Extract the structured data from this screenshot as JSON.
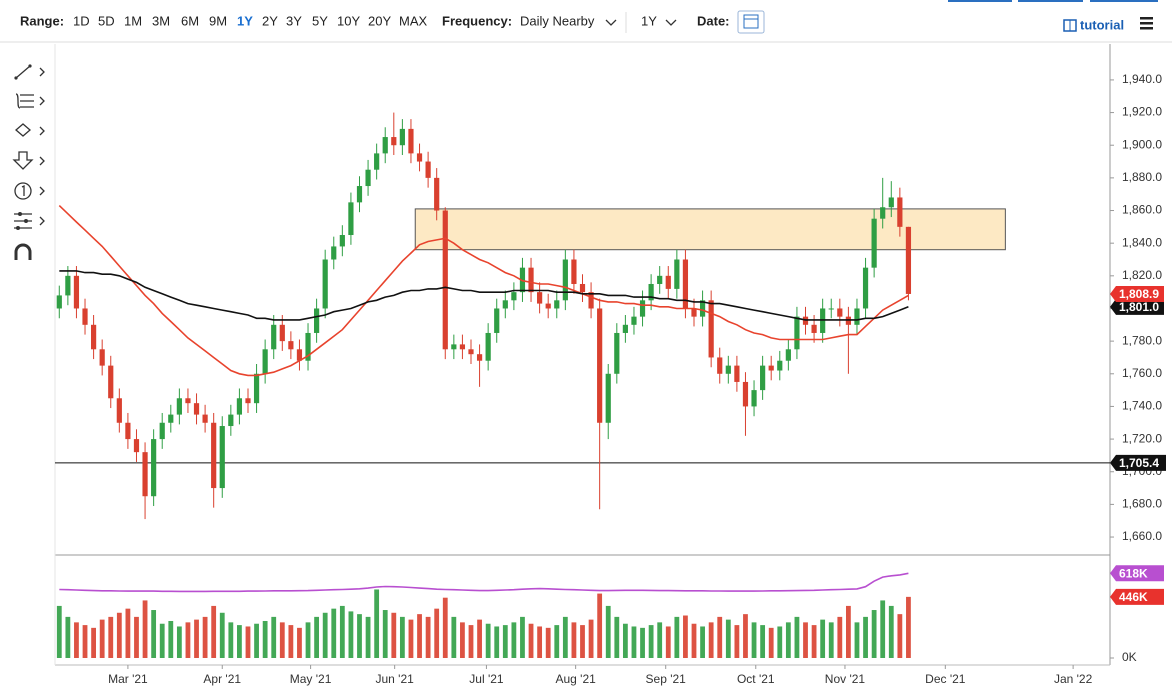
{
  "toolbar": {
    "range_label": "Range:",
    "ranges": [
      "1D",
      "5D",
      "1M",
      "3M",
      "6M",
      "9M",
      "1Y",
      "2Y",
      "3Y",
      "5Y",
      "10Y",
      "20Y",
      "MAX"
    ],
    "active_range": 6,
    "frequency_label": "Frequency:",
    "frequency": "Daily Nearby",
    "period": "1Y",
    "date_label": "Date:",
    "tutorial": "tutorial"
  },
  "chart_data": {
    "type": "candlestick",
    "categories": [
      null,
      null,
      null,
      null,
      null,
      null,
      null,
      null,
      null,
      null,
      null,
      null,
      null,
      null,
      null,
      null,
      null,
      null,
      null,
      null,
      null,
      null,
      null,
      null,
      null,
      null,
      null,
      null,
      null,
      null,
      null,
      null,
      null,
      null,
      null,
      null,
      null,
      null,
      null,
      null,
      null,
      null,
      null,
      null,
      null,
      null,
      null,
      null,
      null,
      null,
      null,
      null,
      null,
      null,
      null,
      null,
      null,
      null,
      null,
      null,
      null,
      null,
      null,
      null,
      null,
      null,
      null,
      null,
      null,
      null,
      null,
      null,
      null,
      null,
      null,
      null,
      null,
      null,
      null,
      null,
      null,
      null,
      null,
      null,
      null,
      null,
      null,
      null,
      null,
      null,
      null,
      null,
      null,
      null,
      null,
      null,
      null,
      null,
      null,
      null
    ],
    "open": [
      1800,
      1808,
      1820,
      1800,
      1790,
      1775,
      1765,
      1745,
      1730,
      1720,
      1712,
      1685,
      1720,
      1730,
      1735,
      1745,
      1742,
      1735,
      1730,
      1690,
      1728,
      1735,
      1745,
      1742,
      1760,
      1775,
      1790,
      1780,
      1775,
      1768,
      1785,
      1800,
      1830,
      1838,
      1845,
      1865,
      1875,
      1885,
      1895,
      1905,
      1900,
      1910,
      1895,
      1890,
      1880,
      1860,
      1775,
      1778,
      1775,
      1772,
      1768,
      1785,
      1800,
      1805,
      1810,
      1825,
      1810,
      1803,
      1800,
      1805,
      1830,
      1815,
      1810,
      1800,
      1730,
      1760,
      1785,
      1790,
      1795,
      1805,
      1815,
      1820,
      1812,
      1830,
      1800,
      1795,
      1805,
      1770,
      1760,
      1765,
      1755,
      1740,
      1750,
      1765,
      1762,
      1768,
      1775,
      1795,
      1790,
      1785,
      1800,
      1800,
      1795,
      1790,
      1800,
      1825,
      1855,
      1862,
      1868,
      1850
    ],
    "high": [
      1814,
      1826,
      1826,
      1806,
      1796,
      1781,
      1771,
      1751,
      1736,
      1726,
      1718,
      1726,
      1736,
      1741,
      1751,
      1751,
      1748,
      1741,
      1736,
      1734,
      1741,
      1751,
      1751,
      1766,
      1781,
      1796,
      1796,
      1786,
      1781,
      1791,
      1806,
      1836,
      1844,
      1851,
      1871,
      1881,
      1891,
      1901,
      1911,
      1920,
      1916,
      1916,
      1901,
      1896,
      1886,
      1862,
      1784,
      1784,
      1781,
      1778,
      1791,
      1806,
      1811,
      1816,
      1831,
      1831,
      1816,
      1809,
      1811,
      1836,
      1836,
      1821,
      1816,
      1806,
      1766,
      1791,
      1796,
      1801,
      1811,
      1821,
      1826,
      1826,
      1836,
      1836,
      1806,
      1811,
      1811,
      1776,
      1771,
      1771,
      1761,
      1756,
      1771,
      1771,
      1774,
      1781,
      1801,
      1801,
      1796,
      1806,
      1806,
      1806,
      1801,
      1806,
      1831,
      1861,
      1880,
      1878,
      1874,
      1850
    ],
    "low": [
      1794,
      1802,
      1794,
      1784,
      1769,
      1759,
      1739,
      1724,
      1714,
      1706,
      1671,
      1679,
      1714,
      1724,
      1729,
      1736,
      1729,
      1724,
      1678,
      1684,
      1722,
      1729,
      1736,
      1736,
      1754,
      1769,
      1774,
      1769,
      1762,
      1762,
      1779,
      1794,
      1824,
      1832,
      1839,
      1859,
      1869,
      1879,
      1889,
      1894,
      1894,
      1889,
      1884,
      1874,
      1854,
      1769,
      1769,
      1769,
      1766,
      1752,
      1762,
      1779,
      1794,
      1799,
      1804,
      1804,
      1797,
      1794,
      1794,
      1799,
      1809,
      1804,
      1794,
      1677,
      1720,
      1754,
      1779,
      1784,
      1789,
      1799,
      1809,
      1806,
      1806,
      1794,
      1789,
      1789,
      1764,
      1754,
      1754,
      1749,
      1722,
      1734,
      1744,
      1756,
      1756,
      1762,
      1769,
      1784,
      1779,
      1779,
      1794,
      1789,
      1760,
      1784,
      1794,
      1819,
      1849,
      1856,
      1844,
      1805
    ],
    "close": [
      1808,
      1820,
      1800,
      1790,
      1775,
      1765,
      1745,
      1730,
      1720,
      1712,
      1685,
      1720,
      1730,
      1735,
      1745,
      1742,
      1735,
      1730,
      1690,
      1728,
      1735,
      1745,
      1742,
      1760,
      1775,
      1790,
      1780,
      1775,
      1768,
      1785,
      1800,
      1830,
      1838,
      1845,
      1865,
      1875,
      1885,
      1895,
      1905,
      1900,
      1910,
      1895,
      1890,
      1880,
      1860,
      1775,
      1778,
      1775,
      1772,
      1768,
      1785,
      1800,
      1805,
      1810,
      1825,
      1810,
      1803,
      1800,
      1805,
      1830,
      1815,
      1810,
      1800,
      1730,
      1760,
      1785,
      1790,
      1795,
      1805,
      1815,
      1820,
      1812,
      1830,
      1800,
      1795,
      1805,
      1770,
      1760,
      1765,
      1755,
      1740,
      1750,
      1765,
      1762,
      1768,
      1775,
      1795,
      1790,
      1785,
      1800,
      1800,
      1795,
      1790,
      1800,
      1825,
      1855,
      1862,
      1868,
      1850,
      1808.9
    ],
    "up_color": "#2f9e44",
    "down_color": "#d9402f",
    "overlays": [
      {
        "color": "#e8432d",
        "values": [
          1863,
          1858,
          1853,
          1848,
          1843,
          1838,
          1832,
          1826,
          1820,
          1814,
          1808,
          1803,
          1797,
          1792,
          1787,
          1782,
          1778,
          1774,
          1770,
          1766,
          1762,
          1760,
          1759,
          1759,
          1760,
          1761,
          1763,
          1765,
          1768,
          1771,
          1775,
          1779,
          1783,
          1787,
          1793,
          1799,
          1805,
          1811,
          1817,
          1823,
          1829,
          1834,
          1839,
          1841,
          1842,
          1843,
          1840,
          1836,
          1833,
          1830,
          1828,
          1825,
          1822,
          1820,
          1817,
          1816,
          1815,
          1815,
          1814,
          1813,
          1811,
          1809,
          1807,
          1805,
          1804,
          1804,
          1803,
          1803,
          1802,
          1802,
          1801,
          1801,
          1800,
          1800,
          1800,
          1799,
          1797,
          1795,
          1792,
          1790,
          1787,
          1785,
          1784,
          1782,
          1781,
          1781,
          1781,
          1781,
          1781,
          1781,
          1782,
          1783,
          1784,
          1784,
          1789,
          1794,
          1799,
          1802,
          1805,
          1808
        ]
      },
      {
        "color": "#111111",
        "values": [
          1823,
          1823,
          1823,
          1822,
          1822,
          1821,
          1821,
          1820,
          1818,
          1816,
          1813,
          1811,
          1809,
          1807,
          1805,
          1803,
          1802,
          1801,
          1800,
          1799,
          1798,
          1797,
          1796,
          1794,
          1794,
          1793,
          1793,
          1793,
          1793,
          1794,
          1795,
          1796,
          1798,
          1799,
          1800,
          1802,
          1804,
          1805,
          1807,
          1808,
          1810,
          1811,
          1811,
          1812,
          1812,
          1813,
          1812,
          1811,
          1811,
          1810,
          1810,
          1810,
          1810,
          1811,
          1811,
          1811,
          1811,
          1811,
          1810,
          1810,
          1810,
          1809,
          1809,
          1809,
          1808,
          1808,
          1808,
          1807,
          1807,
          1807,
          1806,
          1806,
          1805,
          1805,
          1804,
          1804,
          1803,
          1803,
          1802,
          1801,
          1800,
          1799,
          1798,
          1797,
          1796,
          1795,
          1794,
          1793,
          1793,
          1793,
          1793,
          1793,
          1793,
          1793,
          1794,
          1794,
          1795,
          1797,
          1799,
          1801
        ]
      }
    ],
    "zone": {
      "xlim": [
        41.5,
        110.3
      ],
      "ylim": [
        1836,
        1861
      ],
      "color": "#fde9c4"
    },
    "hlines": [
      {
        "value": 1705.4,
        "label": "1,705.4"
      }
    ],
    "price_tags": [
      {
        "value": 1801.0,
        "label": "1,801.0",
        "color": "#111111"
      },
      {
        "value": 1808.9,
        "label": "1,808.9",
        "color": "#e8322d"
      }
    ],
    "xlim": [
      -0.5,
      122.5
    ],
    "xticks": [
      {
        "value": 8,
        "label": "Mar '21"
      },
      {
        "value": 19,
        "label": "Apr '21"
      },
      {
        "value": 29.3,
        "label": "May '21"
      },
      {
        "value": 39.1,
        "label": "Jun '21"
      },
      {
        "value": 49.8,
        "label": "Jul '21"
      },
      {
        "value": 60.2,
        "label": "Aug '21"
      },
      {
        "value": 70.7,
        "label": "Sep '21"
      },
      {
        "value": 81.2,
        "label": "Oct '21"
      },
      {
        "value": 91.6,
        "label": "Nov '21"
      },
      {
        "value": 103.3,
        "label": "Dec '21"
      },
      {
        "value": 118.2,
        "label": "Jan '22"
      }
    ],
    "ylim": [
      1649,
      1962
    ],
    "yticks": [
      {
        "value": 1660,
        "label": "1,660.0"
      },
      {
        "value": 1680,
        "label": "1,680.0"
      },
      {
        "value": 1700,
        "label": "1,700.0"
      },
      {
        "value": 1720,
        "label": "1,720.0"
      },
      {
        "value": 1740,
        "label": "1,740.0"
      },
      {
        "value": 1760,
        "label": "1,760.0"
      },
      {
        "value": 1780,
        "label": "1,780.0"
      },
      {
        "value": 1800,
        "label": "1,800.0"
      },
      {
        "value": 1820,
        "label": "1,820.0"
      },
      {
        "value": 1840,
        "label": "1,840.0"
      },
      {
        "value": 1860,
        "label": "1,860.0"
      },
      {
        "value": 1880,
        "label": "1,880.0"
      },
      {
        "value": 1900,
        "label": "1,900.0"
      },
      {
        "value": 1920,
        "label": "1,920.0"
      },
      {
        "value": 1940,
        "label": "1,940.0"
      }
    ],
    "volume": {
      "values": [
        380,
        300,
        260,
        240,
        220,
        280,
        300,
        330,
        360,
        300,
        420,
        350,
        250,
        270,
        230,
        260,
        280,
        300,
        380,
        330,
        260,
        240,
        230,
        250,
        270,
        300,
        260,
        240,
        220,
        260,
        300,
        330,
        360,
        380,
        340,
        320,
        300,
        500,
        350,
        330,
        300,
        280,
        320,
        300,
        360,
        440,
        300,
        260,
        240,
        280,
        250,
        230,
        240,
        260,
        300,
        250,
        230,
        220,
        240,
        300,
        260,
        240,
        280,
        470,
        380,
        300,
        250,
        230,
        220,
        240,
        260,
        230,
        300,
        310,
        250,
        230,
        260,
        300,
        280,
        240,
        320,
        260,
        240,
        220,
        230,
        260,
        300,
        260,
        240,
        280,
        260,
        300,
        380,
        260,
        300,
        350,
        420,
        380,
        320,
        446
      ],
      "ma": {
        "color": "#b84fd0",
        "values": [
          500,
          498,
          496,
          494,
          492,
          490,
          490,
          489,
          488,
          488,
          488,
          488,
          487,
          487,
          486,
          486,
          486,
          486,
          487,
          487,
          487,
          487,
          488,
          488,
          489,
          490,
          490,
          490,
          491,
          492,
          494,
          496,
          498,
          500,
          502,
          505,
          510,
          518,
          522,
          520,
          518,
          514,
          510,
          506,
          502,
          500,
          498,
          496,
          494,
          492,
          492,
          494,
          496,
          498,
          502,
          505,
          506,
          505,
          502,
          500,
          498,
          496,
          494,
          492,
          492,
          493,
          494,
          494,
          494,
          493,
          492,
          492,
          491,
          490,
          490,
          490,
          489,
          489,
          488,
          488,
          488,
          488,
          489,
          490,
          490,
          491,
          492,
          493,
          494,
          496,
          498,
          500,
          502,
          504,
          520,
          560,
          590,
          600,
          606,
          618
        ]
      },
      "ylim": [
        0,
        715
      ],
      "yticks": [
        {
          "value": 0,
          "label": "0K"
        }
      ],
      "tags": [
        {
          "value": 618,
          "label": "618K",
          "color": "#b84fd0"
        },
        {
          "value": 446,
          "label": "446K",
          "color": "#e8322d"
        }
      ]
    }
  }
}
